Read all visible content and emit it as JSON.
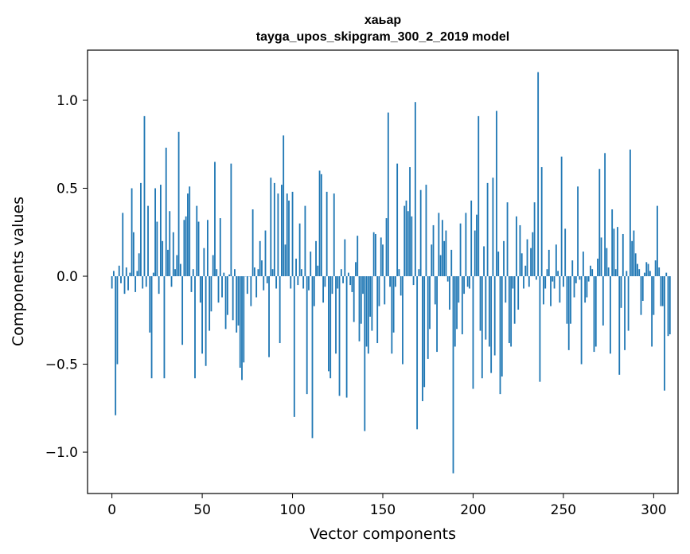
{
  "chart_data": {
    "type": "bar",
    "title": "хаьар",
    "subtitle": "tayga_upos_skipgram_300_2_2019 model",
    "xlabel": "Vector components",
    "ylabel": "Components values",
    "xlim": [
      -13.5,
      313.5
    ],
    "ylim": [
      -1.235,
      1.285
    ],
    "xticks": [
      0,
      50,
      100,
      150,
      200,
      250,
      300
    ],
    "xtick_labels": [
      "0",
      "50",
      "100",
      "150",
      "200",
      "250",
      "300"
    ],
    "yticks": [
      -1.0,
      -0.5,
      0.0,
      0.5,
      1.0
    ],
    "ytick_labels": [
      "−1.0",
      "−0.5",
      "0.0",
      "0.5",
      "1.0"
    ],
    "grid": false,
    "bar_color": "#1f77b4",
    "x_start": 0,
    "values": [
      -0.07,
      0.03,
      -0.79,
      -0.5,
      0.06,
      -0.04,
      0.36,
      -0.1,
      0.05,
      -0.08,
      0.02,
      0.5,
      0.25,
      -0.09,
      0.03,
      0.13,
      0.53,
      -0.07,
      0.91,
      -0.06,
      0.4,
      -0.32,
      -0.58,
      0.02,
      0.5,
      0.31,
      -0.1,
      0.52,
      0.2,
      -0.58,
      0.73,
      0.15,
      0.37,
      -0.06,
      0.25,
      0.04,
      0.12,
      0.82,
      0.07,
      -0.39,
      0.32,
      0.34,
      0.47,
      0.51,
      -0.09,
      0.04,
      -0.58,
      0.4,
      0.31,
      -0.15,
      -0.44,
      0.16,
      -0.51,
      0.32,
      -0.31,
      -0.2,
      0.12,
      0.65,
      0.04,
      -0.15,
      0.33,
      -0.12,
      0.02,
      -0.3,
      -0.22,
      0.01,
      0.64,
      -0.25,
      0.04,
      -0.32,
      -0.28,
      -0.52,
      -0.59,
      -0.49,
      0.0,
      -0.1,
      0.0,
      -0.17,
      0.38,
      0.05,
      -0.12,
      0.04,
      0.2,
      0.09,
      -0.08,
      0.26,
      -0.04,
      -0.46,
      0.56,
      0.04,
      0.53,
      -0.07,
      0.47,
      -0.38,
      0.52,
      0.8,
      0.18,
      0.47,
      0.43,
      -0.07,
      0.48,
      -0.8,
      0.1,
      -0.05,
      0.3,
      0.04,
      -0.07,
      0.4,
      -0.67,
      -0.08,
      0.14,
      -0.92,
      -0.17,
      0.2,
      0.06,
      0.6,
      0.58,
      -0.15,
      -0.06,
      0.48,
      -0.54,
      -0.58,
      -0.1,
      0.47,
      -0.44,
      -0.07,
      -0.68,
      0.04,
      -0.04,
      0.21,
      -0.69,
      0.02,
      -0.05,
      -0.09,
      -0.26,
      0.08,
      0.23,
      -0.37,
      -0.27,
      -0.1,
      -0.88,
      -0.4,
      -0.44,
      -0.23,
      -0.31,
      0.25,
      0.24,
      -0.38,
      -0.17,
      0.22,
      0.18,
      -0.16,
      0.33,
      0.93,
      -0.06,
      -0.44,
      -0.32,
      -0.06,
      0.64,
      0.04,
      -0.11,
      -0.5,
      0.4,
      0.43,
      0.37,
      0.62,
      0.34,
      -0.05,
      0.99,
      -0.87,
      0.04,
      0.49,
      -0.71,
      -0.63,
      0.52,
      -0.47,
      -0.3,
      0.18,
      0.29,
      -0.16,
      -0.43,
      0.36,
      0.12,
      0.32,
      0.2,
      0.26,
      -0.03,
      -0.19,
      0.15,
      -1.12,
      -0.4,
      -0.3,
      -0.15,
      0.3,
      -0.33,
      -0.1,
      0.36,
      -0.06,
      -0.07,
      0.43,
      -0.64,
      0.26,
      0.35,
      0.91,
      -0.31,
      -0.58,
      0.17,
      -0.36,
      0.53,
      -0.4,
      -0.55,
      0.56,
      -0.45,
      0.94,
      0.14,
      -0.67,
      -0.57,
      0.2,
      -0.15,
      0.42,
      -0.38,
      -0.4,
      -0.07,
      -0.27,
      0.34,
      -0.19,
      0.29,
      0.13,
      -0.07,
      0.06,
      0.21,
      -0.06,
      0.16,
      0.25,
      0.42,
      -0.02,
      1.16,
      -0.6,
      0.62,
      -0.16,
      -0.07,
      0.04,
      0.15,
      -0.17,
      -0.03,
      -0.07,
      0.18,
      0.03,
      -0.15,
      0.68,
      -0.06,
      0.27,
      -0.27,
      -0.42,
      -0.27,
      0.09,
      -0.12,
      -0.04,
      0.51,
      -0.02,
      -0.5,
      0.14,
      -0.15,
      -0.12,
      -0.03,
      0.06,
      0.04,
      -0.43,
      -0.4,
      0.1,
      0.61,
      0.22,
      -0.28,
      0.7,
      0.16,
      0.05,
      -0.44,
      0.38,
      0.27,
      0.04,
      0.28,
      -0.56,
      -0.18,
      0.24,
      -0.42,
      0.03,
      -0.31,
      0.72,
      0.2,
      0.26,
      0.13,
      0.07,
      0.04,
      -0.22,
      -0.14,
      0.02,
      0.08,
      0.07,
      0.03,
      -0.4,
      -0.22,
      0.09,
      0.4,
      0.05,
      -0.17,
      -0.17,
      -0.65,
      0.02,
      -0.34,
      -0.33
    ]
  }
}
